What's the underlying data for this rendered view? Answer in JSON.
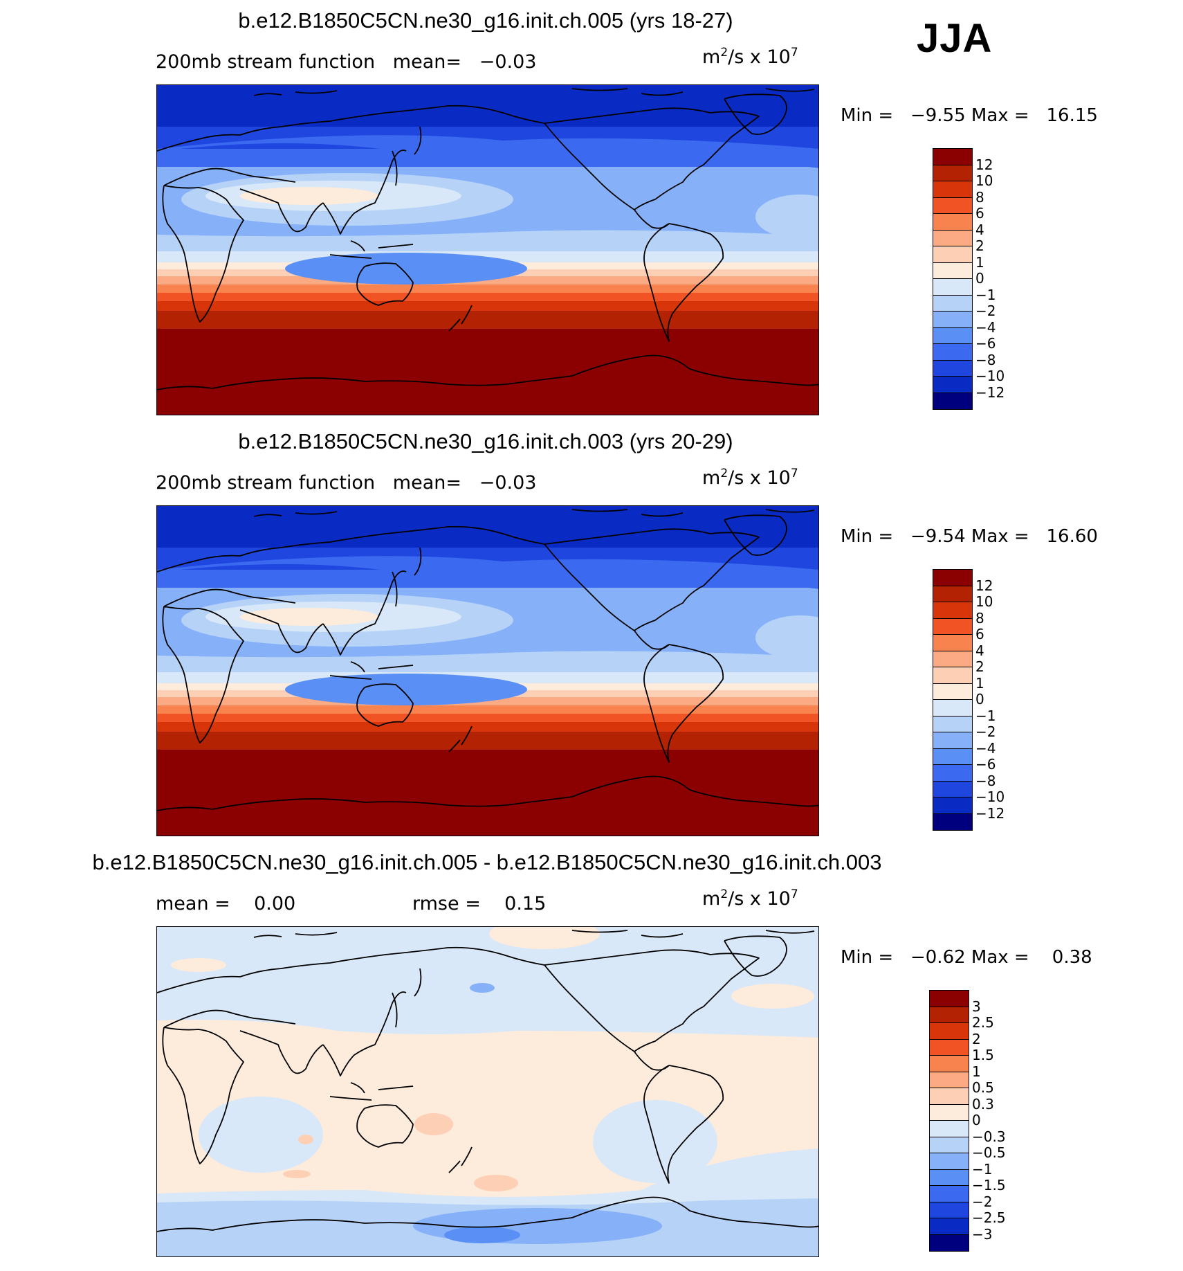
{
  "season": "JJA",
  "units": {
    "base": "m",
    "exp1": "2",
    "mid": "/s x 10",
    "exp2": "7"
  },
  "panels": [
    {
      "title": "b.e12.B1850C5CN.ne30_g16.init.ch.005 (yrs 18-27)",
      "subtitle_left": "200mb stream function   mean=   −0.03",
      "min": "Min =   −9.55 Max =   16.15",
      "map_kind": "mean"
    },
    {
      "title": "b.e12.B1850C5CN.ne30_g16.init.ch.003 (yrs 20-29)",
      "subtitle_left": "200mb stream function   mean=   −0.03",
      "min": "Min =   −9.54 Max =   16.60",
      "map_kind": "mean"
    },
    {
      "title": "b.e12.B1850C5CN.ne30_g16.init.ch.005 - b.e12.B1850C5CN.ne30_g16.init.ch.003",
      "subtitle_left": "mean =    0.00",
      "subtitle_mid": "rmse =    0.15",
      "min": "Min =   −0.62 Max =    0.38",
      "map_kind": "diff"
    }
  ],
  "colorbar_mean": {
    "labels": [
      "12",
      "10",
      "8",
      "6",
      "4",
      "2",
      "1",
      "0",
      "−1",
      "−2",
      "−4",
      "−6",
      "−8",
      "−10",
      "−12"
    ],
    "colors": [
      "#8b0000",
      "#b22203",
      "#d8360a",
      "#f25325",
      "#f8834f",
      "#fbaa83",
      "#fdd0b5",
      "#fdebdc",
      "#d8e8f8",
      "#b6d3f7",
      "#86b1f8",
      "#5a90f5",
      "#3b6af0",
      "#1f47e0",
      "#0a2ac4",
      "#00007f"
    ]
  },
  "colorbar_diff": {
    "labels": [
      "3",
      "2.5",
      "2",
      "1.5",
      "1",
      "0.5",
      "0.3",
      "0",
      "−0.3",
      "−0.5",
      "−1",
      "−1.5",
      "−2",
      "−2.5",
      "−3"
    ],
    "colors": [
      "#8b0000",
      "#b22203",
      "#d8360a",
      "#f25325",
      "#f8834f",
      "#fbaa83",
      "#fdd0b5",
      "#fdebdc",
      "#d8e8f8",
      "#b6d3f7",
      "#86b1f8",
      "#5a90f5",
      "#3b6af0",
      "#1f47e0",
      "#0a2ac4",
      "#00007f"
    ]
  }
}
